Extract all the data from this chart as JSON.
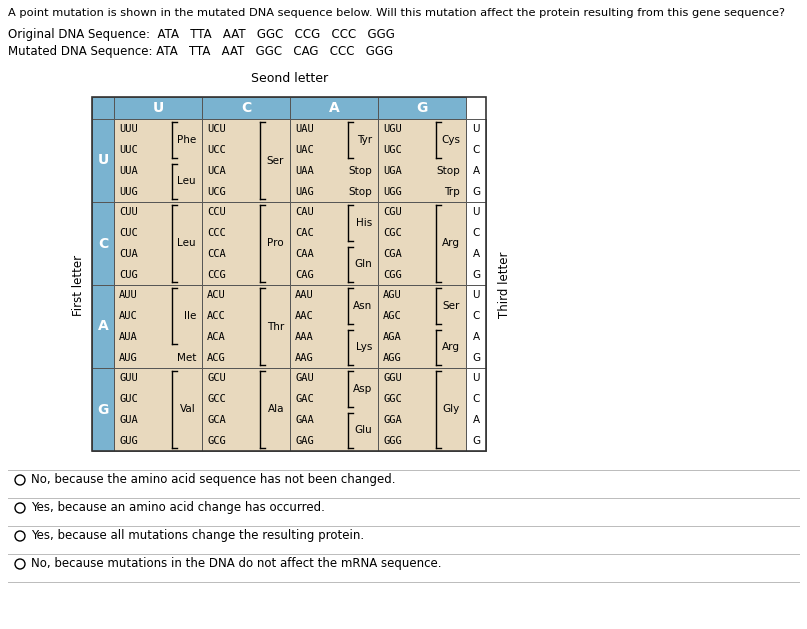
{
  "title": "A point mutation is shown in the mutated DNA sequence below. Will this mutation affect the protein resulting from this gene sequence?",
  "original_seq_label": "Original DNA Sequence:",
  "original_seq_codons": "ATA   TTA   AAT   GGC   CCG   CCC   GGG",
  "mutated_seq_label": "Mutated DNA Sequence:",
  "mutated_seq_codons": "ATA   TTA   AAT   GGC   CAG   CCC   GGG",
  "table_title": "Seond letter",
  "col_headers": [
    "U",
    "C",
    "A",
    "G"
  ],
  "first_letter_label": "First letter",
  "third_letter_label": "Third letter",
  "header_bg": "#7ab3d0",
  "cell_bg": "#e8d9be",
  "third_letter_bg": "#f5f0e8",
  "table_data": {
    "U": {
      "U": {
        "codons": [
          "UUU",
          "UUC",
          "UUA",
          "UUG"
        ],
        "aa_groups": [
          {
            "aa": "Phe",
            "rows": [
              0,
              1
            ]
          },
          {
            "aa": "Leu",
            "rows": [
              2,
              3
            ]
          }
        ]
      },
      "C": {
        "codons": [
          "UCU",
          "UCC",
          "UCA",
          "UCG"
        ],
        "aa_groups": [
          {
            "aa": "Ser",
            "rows": [
              0,
              1,
              2,
              3
            ]
          }
        ]
      },
      "A": {
        "codons": [
          "UAU",
          "UAC",
          "UAA",
          "UAG"
        ],
        "aa_groups": [
          {
            "aa": "Tyr",
            "rows": [
              0,
              1
            ]
          },
          {
            "aa": "Stop",
            "rows": [
              2
            ]
          },
          {
            "aa": "Stop",
            "rows": [
              3
            ]
          }
        ]
      },
      "G": {
        "codons": [
          "UGU",
          "UGC",
          "UGA",
          "UGG"
        ],
        "aa_groups": [
          {
            "aa": "Cys",
            "rows": [
              0,
              1
            ]
          },
          {
            "aa": "Stop",
            "rows": [
              2
            ]
          },
          {
            "aa": "Trp",
            "rows": [
              3
            ]
          }
        ]
      }
    },
    "C": {
      "U": {
        "codons": [
          "CUU",
          "CUC",
          "CUA",
          "CUG"
        ],
        "aa_groups": [
          {
            "aa": "Leu",
            "rows": [
              0,
              1,
              2,
              3
            ]
          }
        ]
      },
      "C": {
        "codons": [
          "CCU",
          "CCC",
          "CCA",
          "CCG"
        ],
        "aa_groups": [
          {
            "aa": "Pro",
            "rows": [
              0,
              1,
              2,
              3
            ]
          }
        ]
      },
      "A": {
        "codons": [
          "CAU",
          "CAC",
          "CAA",
          "CAG"
        ],
        "aa_groups": [
          {
            "aa": "His",
            "rows": [
              0,
              1
            ]
          },
          {
            "aa": "Gln",
            "rows": [
              2,
              3
            ]
          }
        ]
      },
      "G": {
        "codons": [
          "CGU",
          "CGC",
          "CGA",
          "CGG"
        ],
        "aa_groups": [
          {
            "aa": "Arg",
            "rows": [
              0,
              1,
              2,
              3
            ]
          }
        ]
      }
    },
    "A": {
      "U": {
        "codons": [
          "AUU",
          "AUC",
          "AUA",
          "AUG"
        ],
        "aa_groups": [
          {
            "aa": "Ile",
            "rows": [
              0,
              1,
              2
            ]
          },
          {
            "aa": "Met",
            "rows": [
              3
            ]
          }
        ]
      },
      "C": {
        "codons": [
          "ACU",
          "ACC",
          "ACA",
          "ACG"
        ],
        "aa_groups": [
          {
            "aa": "Thr",
            "rows": [
              0,
              1,
              2,
              3
            ]
          }
        ]
      },
      "A": {
        "codons": [
          "AAU",
          "AAC",
          "AAA",
          "AAG"
        ],
        "aa_groups": [
          {
            "aa": "Asn",
            "rows": [
              0,
              1
            ]
          },
          {
            "aa": "Lys",
            "rows": [
              2,
              3
            ]
          }
        ]
      },
      "G": {
        "codons": [
          "AGU",
          "AGC",
          "AGA",
          "AGG"
        ],
        "aa_groups": [
          {
            "aa": "Ser",
            "rows": [
              0,
              1
            ]
          },
          {
            "aa": "Arg",
            "rows": [
              2,
              3
            ]
          }
        ]
      }
    },
    "G": {
      "U": {
        "codons": [
          "GUU",
          "GUC",
          "GUA",
          "GUG"
        ],
        "aa_groups": [
          {
            "aa": "Val",
            "rows": [
              0,
              1,
              2,
              3
            ]
          }
        ]
      },
      "C": {
        "codons": [
          "GCU",
          "GCC",
          "GCA",
          "GCG"
        ],
        "aa_groups": [
          {
            "aa": "Ala",
            "rows": [
              0,
              1,
              2,
              3
            ]
          }
        ]
      },
      "A": {
        "codons": [
          "GAU",
          "GAC",
          "GAA",
          "GAG"
        ],
        "aa_groups": [
          {
            "aa": "Asp",
            "rows": [
              0,
              1
            ]
          },
          {
            "aa": "Glu",
            "rows": [
              2,
              3
            ]
          }
        ]
      },
      "G": {
        "codons": [
          "GGU",
          "GGC",
          "GGA",
          "GGG"
        ],
        "aa_groups": [
          {
            "aa": "Gly",
            "rows": [
              0,
              1,
              2,
              3
            ]
          }
        ]
      }
    }
  },
  "row_labels": [
    "U",
    "C",
    "A",
    "G"
  ],
  "answers": [
    "No, because the amino acid sequence has not been changed.",
    "Yes, because an amino acid change has occurred.",
    "Yes, because all mutations change the resulting protein.",
    "No, because mutations in the DNA do not affect the mRNA sequence."
  ]
}
